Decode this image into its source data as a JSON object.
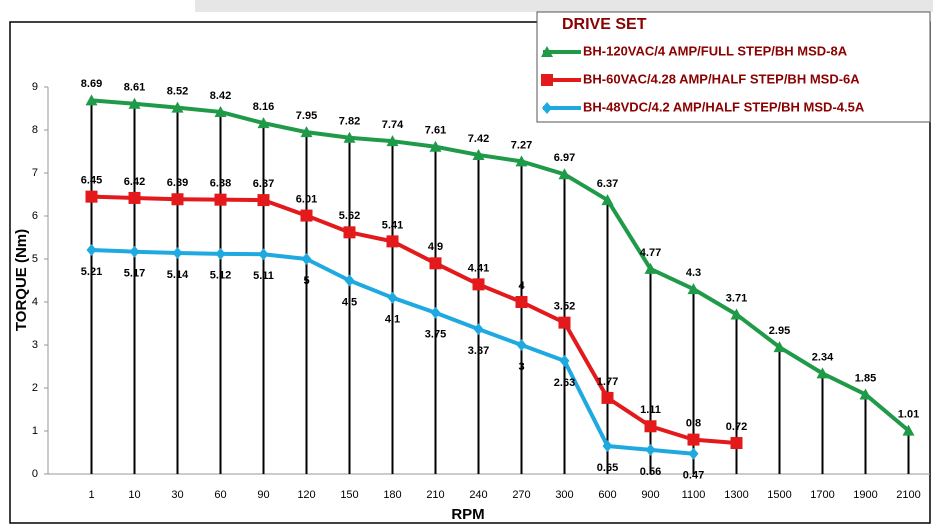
{
  "chart_data": {
    "type": "line",
    "x_label": "RPM",
    "y_label": "TORQUE (Nm)",
    "legend_title": "DRIVE SET",
    "legend": "upper right",
    "categories": [
      "1",
      "10",
      "30",
      "60",
      "90",
      "120",
      "150",
      "180",
      "210",
      "240",
      "270",
      "300",
      "600",
      "900",
      "1100",
      "1300",
      "1500",
      "1700",
      "1900",
      "2100"
    ],
    "ylim": [
      0,
      9
    ],
    "yticks": [
      0,
      1,
      2,
      3,
      4,
      5,
      6,
      7,
      8,
      9
    ],
    "series": [
      {
        "name": "BH-120VAC/4 AMP/FULL STEP/BH MSD-8A",
        "color": "#1f9a48",
        "marker": "triangle",
        "label_side": "above",
        "values": [
          8.69,
          8.61,
          8.52,
          8.42,
          8.16,
          7.95,
          7.82,
          7.74,
          7.61,
          7.42,
          7.27,
          6.97,
          6.37,
          4.77,
          4.3,
          3.71,
          2.95,
          2.34,
          1.85,
          1.01
        ]
      },
      {
        "name": "BH-60VAC/4.28 AMP/HALF STEP/BH MSD-6A",
        "color": "#e3191c",
        "marker": "square",
        "label_side": "above",
        "values": [
          6.45,
          6.42,
          6.39,
          6.38,
          6.37,
          6.01,
          5.62,
          5.41,
          4.9,
          4.41,
          4,
          3.52,
          1.77,
          1.11,
          0.8,
          0.72,
          null,
          null,
          null,
          null
        ]
      },
      {
        "name": "BH-48VDC/4.2 AMP/HALF STEP/BH MSD-4.5A",
        "color": "#1ea9e1",
        "marker": "diamond",
        "label_side": "below",
        "values": [
          5.21,
          5.17,
          5.14,
          5.12,
          5.11,
          5,
          4.5,
          4.1,
          3.75,
          3.37,
          3,
          2.63,
          0.65,
          0.56,
          0.47,
          null,
          null,
          null,
          null,
          null
        ]
      }
    ]
  }
}
